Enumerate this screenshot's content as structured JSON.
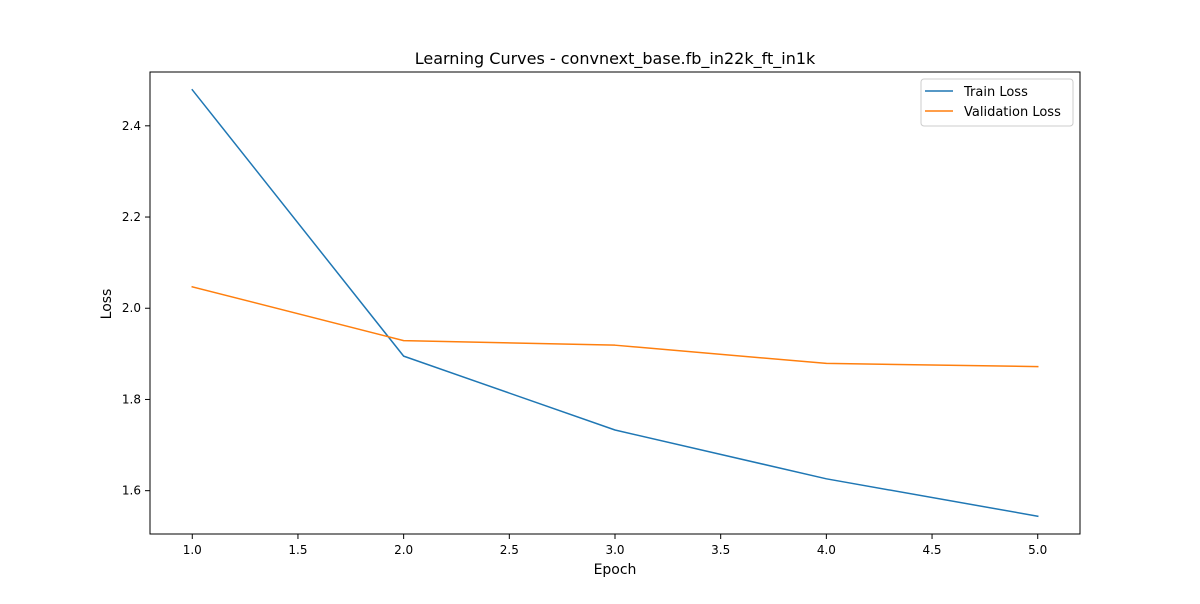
{
  "chart_data": {
    "type": "line",
    "title": "Learning Curves - convnext_base.fb_in22k_ft_in1k",
    "xlabel": "Epoch",
    "ylabel": "Loss",
    "xlim": [
      0.8,
      5.2
    ],
    "ylim": [
      1.505,
      2.518
    ],
    "xticks": [
      1.0,
      1.5,
      2.0,
      2.5,
      3.0,
      3.5,
      4.0,
      4.5,
      5.0
    ],
    "xtick_labels": [
      "1.0",
      "1.5",
      "2.0",
      "2.5",
      "3.0",
      "3.5",
      "4.0",
      "4.5",
      "5.0"
    ],
    "yticks": [
      1.6,
      1.8,
      2.0,
      2.2,
      2.4
    ],
    "ytick_labels": [
      "1.6",
      "1.8",
      "2.0",
      "2.2",
      "2.4"
    ],
    "grid": false,
    "legend_position": "top-right",
    "x": [
      1,
      2,
      3,
      4,
      5
    ],
    "series": [
      {
        "name": "Train Loss",
        "color": "#1f77b4",
        "values": [
          2.479,
          1.895,
          1.733,
          1.626,
          1.544
        ]
      },
      {
        "name": "Validation Loss",
        "color": "#ff7f0e",
        "values": [
          2.047,
          1.929,
          1.919,
          1.879,
          1.872
        ]
      }
    ]
  }
}
